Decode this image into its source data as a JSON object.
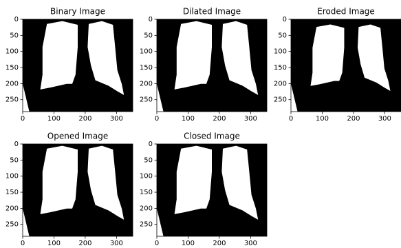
{
  "chart_data": [
    {
      "type": "image",
      "title": "Binary Image",
      "xlim": [
        0,
        352
      ],
      "ylim": [
        287,
        0
      ],
      "xticks": [
        0,
        100,
        200,
        300
      ],
      "yticks": [
        0,
        50,
        100,
        150,
        200,
        250
      ]
    },
    {
      "type": "image",
      "title": "Dilated Image",
      "xlim": [
        0,
        352
      ],
      "ylim": [
        287,
        0
      ],
      "xticks": [
        0,
        100,
        200,
        300
      ],
      "yticks": [
        0,
        50,
        100,
        150,
        200,
        250
      ]
    },
    {
      "type": "image",
      "title": "Eroded Image",
      "xlim": [
        0,
        352
      ],
      "ylim": [
        287,
        0
      ],
      "xticks": [
        0,
        100,
        200,
        300
      ],
      "yticks": [
        0,
        50,
        100,
        150,
        200,
        250
      ]
    },
    {
      "type": "image",
      "title": "Opened Image",
      "xlim": [
        0,
        352
      ],
      "ylim": [
        287,
        0
      ],
      "xticks": [
        0,
        100,
        200,
        300
      ],
      "yticks": [
        0,
        50,
        100,
        150,
        200,
        250
      ]
    },
    {
      "type": "image",
      "title": "Closed Image",
      "xlim": [
        0,
        352
      ],
      "ylim": [
        287,
        0
      ],
      "xticks": [
        0,
        100,
        200,
        300
      ],
      "yticks": [
        0,
        50,
        100,
        150,
        200,
        250
      ]
    }
  ]
}
